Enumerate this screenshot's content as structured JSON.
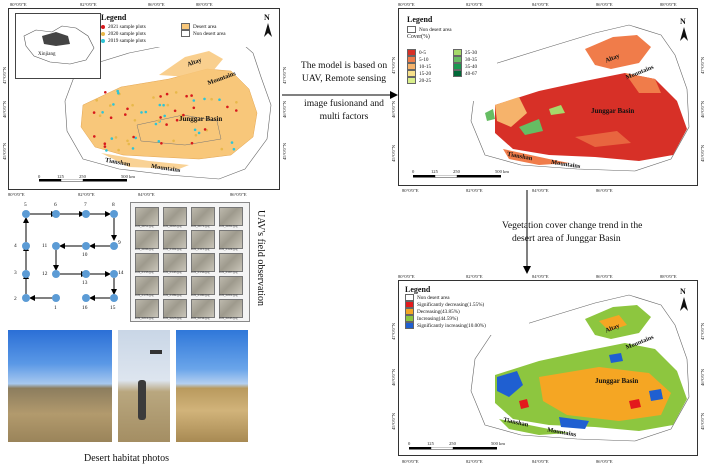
{
  "map1": {
    "legend_title": "Legend",
    "legend_items": [
      {
        "label": "2021 sample plots",
        "color": "#d7191c"
      },
      {
        "label": "2020 sample plots",
        "color": "#e8b84a"
      },
      {
        "label": "2019 sample plots",
        "color": "#2ec4d6"
      },
      {
        "label": "Desert area",
        "color": "#f8c77a"
      },
      {
        "label": "Non desert area",
        "color": "#ffffff"
      }
    ],
    "inset_label": "Xinjiang",
    "north": "N",
    "labels": {
      "altay": "Altay",
      "mountains_n": "Mountains",
      "basin": "Junggar Basin",
      "tianshan": "Tianshan",
      "mountains_s": "Mountains"
    },
    "lon_ticks": [
      "80°0'0\"E",
      "82°0'0\"E",
      "84°0'0\"E",
      "86°0'0\"E",
      "88°0'0\"E",
      "90°0'0\"E"
    ],
    "lat_ticks": [
      "47°0'0\"N",
      "46°0'0\"N",
      "45°0'0\"N",
      "44°0'0\"N"
    ],
    "scale_ticks": [
      "0",
      "125",
      "250",
      "500 km"
    ]
  },
  "map2": {
    "legend_title": "Legend",
    "nondesert": "Non desert area",
    "cover_title": "Cover(%)",
    "cover_items_left": [
      {
        "label": "0-5",
        "color": "#d73027"
      },
      {
        "label": "5-10",
        "color": "#f07c4a"
      },
      {
        "label": "10-15",
        "color": "#f6b36b"
      },
      {
        "label": "15-20",
        "color": "#f7e08a"
      },
      {
        "label": "20-25",
        "color": "#d9ef8b"
      }
    ],
    "cover_items_right": [
      {
        "label": "25-30",
        "color": "#a6d96a"
      },
      {
        "label": "30-35",
        "color": "#66bd63"
      },
      {
        "label": "35-40",
        "color": "#1a9850"
      },
      {
        "label": "40-67",
        "color": "#006837"
      }
    ],
    "north": "N",
    "labels": {
      "altay": "Altay",
      "mountains_n": "Mountains",
      "basin": "Junggar Basin",
      "tianshan": "Tianshan",
      "mountains_s": "Mountains"
    },
    "lon_ticks": [
      "80°0'0\"E",
      "82°0'0\"E",
      "84°0'0\"E",
      "86°0'0\"E",
      "88°0'0\"E",
      "90°0'0\"E"
    ],
    "lat_ticks": [
      "47°0'0\"N",
      "46°0'0\"N",
      "45°0'0\"N",
      "44°0'0\"N"
    ],
    "scale_ticks": [
      "0",
      "125",
      "250",
      "500 km"
    ]
  },
  "map3": {
    "legend_title": "Legend",
    "items": [
      {
        "label": "Non desert area",
        "color": "#ffffff"
      },
      {
        "label": "Significantly decreasing(1.55%)",
        "color": "#e31a1c"
      },
      {
        "label": "Decreasing(43.85%)",
        "color": "#f5a623"
      },
      {
        "label": "Increasing(44.59%)",
        "color": "#8dc63f"
      },
      {
        "label": "Significantly increasing(10.00%)",
        "color": "#1f5fd1"
      }
    ],
    "north": "N",
    "labels": {
      "altay": "Altay",
      "mountains_n": "Mountains",
      "basin": "Junggar Basin",
      "tianshan": "Tianshan",
      "mountains_s": "Mountains"
    },
    "lon_ticks": [
      "80°0'0\"E",
      "82°0'0\"E",
      "84°0'0\"E",
      "86°0'0\"E",
      "88°0'0\"E",
      "90°0'0\"E"
    ],
    "lat_ticks": [
      "47°0'0\"N",
      "46°0'0\"N",
      "45°0'0\"N",
      "44°0'0\"N"
    ],
    "scale_ticks": [
      "0",
      "125",
      "250",
      "500 km"
    ]
  },
  "captions": {
    "arrow1_line1": "The model is based on",
    "arrow1_line2": "UAV, Remote sensing",
    "arrow1_line3": "image fusionand and",
    "arrow1_line4": "multi factors",
    "arrow2_line1": "Vegetation  cover change trend in the",
    "arrow2_line2": "desert area of Junggar Basin",
    "uav_title": "UAV's field observation",
    "photos_title": "Desert habitat photos"
  },
  "uav_nodes": [
    "1",
    "2",
    "3",
    "4",
    "5",
    "6",
    "7",
    "8",
    "9",
    "10",
    "11",
    "12",
    "13",
    "14",
    "15",
    "16"
  ],
  "thumb_captions": [
    "DJI_0051.jpg",
    "DJI_0063.jpg",
    "DJI_0072.jpg",
    "DJI_0081.jpg",
    "DJI_0096.jpg",
    "DJI_0102.jpg",
    "DJI_0115.jpg",
    "DJI_0124.jpg",
    "DJI_0133.jpg",
    "DJI_0145.jpg",
    "DJI_0156.jpg",
    "DJI_0167.jpg",
    "DJI_0178.jpg",
    "DJI_0189.jpg",
    "DJI_0190.jpg",
    "DJI_0201.jpg",
    "DJI_0212.jpg",
    "DJI_0223.jpg",
    "DJI_0234.jpg",
    "DJI_0245.jpg"
  ]
}
